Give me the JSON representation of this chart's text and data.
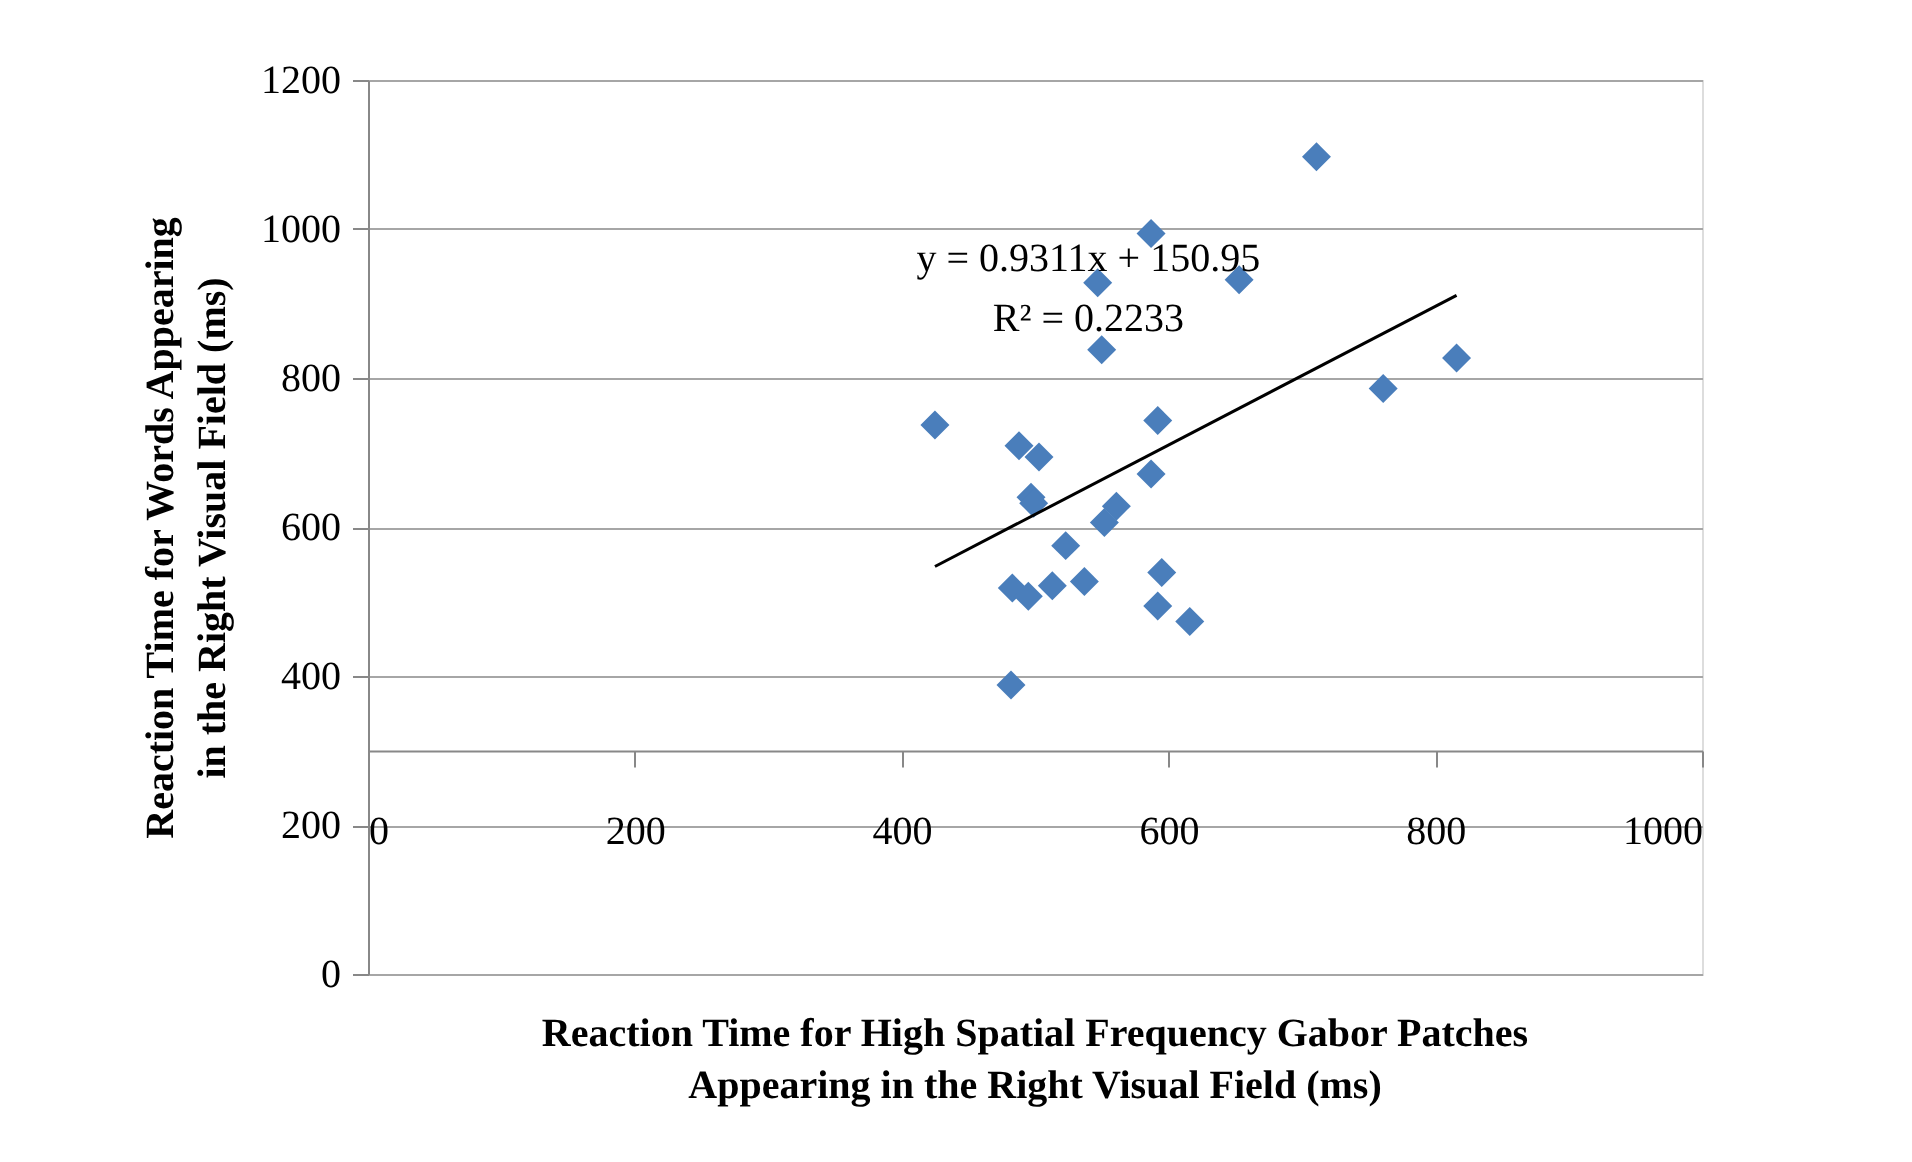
{
  "chart_data": {
    "type": "scatter",
    "xlabel": "Reaction Time for High Spatial Frequency Gabor Patches\nAppearing in the Right Visual Field (ms)",
    "ylabel": "Reaction Time for Words Appearing\nin the Right Visual Field (ms)",
    "xlim": [
      0,
      1000
    ],
    "xticks": [
      0,
      200,
      400,
      600,
      800,
      1000
    ],
    "ylim": [
      0,
      1200
    ],
    "yticks": [
      0,
      200,
      400,
      600,
      800,
      1000,
      1200
    ],
    "grid": "y",
    "marker": "diamond",
    "annotations": [
      "y = 0.9311x + 150.95",
      "R² = 0.2233"
    ],
    "series": [
      {
        "color": "#4a7ebb",
        "x": [
          711,
          587,
          547,
          653,
          550,
          816,
          761,
          425,
          592,
          488,
          503,
          587,
          497,
          499,
          561,
          552,
          523,
          483,
          495,
          513,
          537,
          595,
          592,
          616,
          482
        ],
        "values": [
          1097,
          994,
          928,
          932,
          838,
          827,
          786,
          737,
          743,
          709,
          694,
          671,
          640,
          632,
          628,
          606,
          575,
          518,
          507,
          521,
          527,
          539,
          494,
          473,
          388
        ]
      },
      {
        "type": "line",
        "marker": "none",
        "color": "#000000",
        "x": [
          425,
          816
        ],
        "values": [
          547,
          911
        ]
      }
    ]
  }
}
